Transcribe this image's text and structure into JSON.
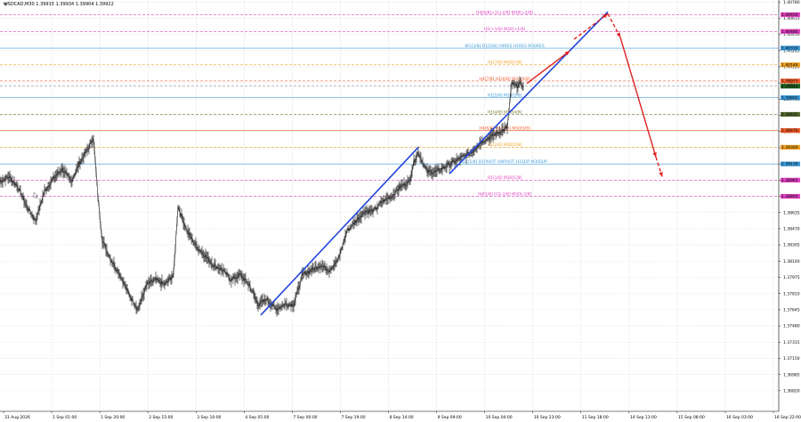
{
  "header": {
    "symbol_ohlc": "USDCAD,M30  1.39915 1.39934 1.39904 1.39922"
  },
  "chart_data": {
    "type": "line",
    "symbol": "USDCAD",
    "timeframe": "M30",
    "ylim": [
      1.3661,
      1.408
    ],
    "x_ticks": [
      "31 Aug 2026",
      "1 Sep 01:00",
      "1 Sep 20:00",
      "2 Sep 15:00",
      "3 Sep 10:00",
      "4 Sep 05:00",
      "7 Sep 00:00",
      "7 Sep 19:00",
      "8 Sep 14:00",
      "9 Sep 09:00",
      "10 Sep 04:00",
      "10 Sep 23:00",
      "11 Sep 18:00",
      "14 Sep 13:00",
      "15 Sep 08:00",
      "16 Sep 03:00",
      "16 Sep 22:00"
    ],
    "y_ticks": [
      {
        "v": 1.4078,
        "t": "1.40780"
      },
      {
        "v": 1.40615,
        "t": "1.40615"
      },
      {
        "v": 1.4045,
        "t": "1.40450"
      },
      {
        "v": 1.40285,
        "t": "1.40285"
      },
      {
        "v": 1.4012,
        "t": "1.40120"
      },
      {
        "v": 1.39955,
        "t": "1.39955"
      },
      {
        "v": 1.3979,
        "t": "1.39790"
      },
      {
        "v": 1.39625,
        "t": "1.39625"
      },
      {
        "v": 1.3946,
        "t": "1.39460"
      },
      {
        "v": 1.39295,
        "t": "1.39295"
      },
      {
        "v": 1.3913,
        "t": "1.39130"
      },
      {
        "v": 1.38965,
        "t": "1.38965"
      },
      {
        "v": 1.388,
        "t": "1.38800"
      },
      {
        "v": 1.38635,
        "t": "1.38635"
      },
      {
        "v": 1.3847,
        "t": "1.38470"
      },
      {
        "v": 1.38305,
        "t": "1.38305"
      },
      {
        "v": 1.3814,
        "t": "1.38140"
      },
      {
        "v": 1.37975,
        "t": "1.37975"
      },
      {
        "v": 1.3781,
        "t": "1.37810"
      },
      {
        "v": 1.37645,
        "t": "1.37645"
      },
      {
        "v": 1.3748,
        "t": "1.37480"
      },
      {
        "v": 1.37315,
        "t": "1.37315"
      },
      {
        "v": 1.3715,
        "t": "1.37150"
      },
      {
        "v": 1.36985,
        "t": "1.36985"
      },
      {
        "v": 1.3682,
        "t": "1.36820"
      }
    ],
    "levels": [
      {
        "value": 1.4065,
        "label": "H4[8/8]+1[+2/8] M30[+2/8]",
        "color": "#e040c0",
        "dash": true,
        "tag": "1.40650",
        "tag_bg": "#e040c0"
      },
      {
        "value": 1.4048,
        "label": "H1[+1/8] M30[+1/8]",
        "color": "#e040c0",
        "dash": true,
        "tag": "1.40480",
        "tag_bg": "#e040c0"
      },
      {
        "value": 1.4031,
        "label": "W1[3/8] D1[6/8] H4RES H1RES M30RES",
        "color": "#3a9ad9",
        "dash": false,
        "tag": "1.40310",
        "tag_bg": "#3a9ad9"
      },
      {
        "value": 1.4014,
        "label": "H1[7/8] M30[7/8]",
        "color": "#f0a020",
        "dash": true,
        "tag": "1.40140",
        "tag_bg": "#f0a020"
      },
      {
        "value": 1.39975,
        "label": "H4[7/8] H1[6/8] M30[6/8]",
        "color": "#f05a28",
        "dash": true,
        "tag": "1.39975",
        "tag_bg": "#f05a28"
      },
      {
        "value": 1.39922,
        "label": "",
        "color": "#888888",
        "dash": true,
        "tag": "1.39922",
        "tag_bg": "#1e5f1e"
      },
      {
        "value": 1.39805,
        "label": "H1[5/8] M30[5/8]",
        "color": "#3a9ad9",
        "dash": false,
        "tag": "1.39805",
        "tag_bg": "#3a9ad9"
      },
      {
        "value": 1.39635,
        "label": "H1[4/8] M30[4/8]",
        "color": "#7a7a30",
        "dash": true,
        "tag": "1.39635",
        "tag_bg": "#556b2f"
      },
      {
        "value": 1.3947,
        "label": "H4[6/8] H1[3/8] M30[3/8]",
        "color": "#f05a28",
        "dash": false,
        "tag": "1.39470",
        "tag_bg": "#f05a28"
      },
      {
        "value": 1.393,
        "label": "H1[2/8] M30[2/8]",
        "color": "#f0a020",
        "dash": true,
        "tag": "1.39300",
        "tag_bg": "#f0a020"
      },
      {
        "value": 1.3913,
        "label": "D1[5/8] D1PIVOT H4PIVOT H1SUP M30SUP",
        "color": "#3a9ad9",
        "dash": false,
        "tag": "1.39130",
        "tag_bg": "#3a9ad9"
      },
      {
        "value": 1.38965,
        "label": "H1[1/8] M30[1/8]",
        "color": "#e040c0",
        "dash": true,
        "tag": "1.38965",
        "tag_bg": "#e040c0"
      },
      {
        "value": 1.388,
        "label": "H4[5/8] H1[-2/8] M30[-2/8]",
        "color": "#e040c0",
        "dash": true,
        "tag": "1.38800",
        "tag_bg": "#e040c0"
      }
    ],
    "price_series": [
      [
        0,
        1.3895
      ],
      [
        10,
        1.39
      ],
      [
        20,
        1.389
      ],
      [
        30,
        1.387
      ],
      [
        40,
        1.3855
      ],
      [
        50,
        1.3885
      ],
      [
        60,
        1.3898
      ],
      [
        70,
        1.3908
      ],
      [
        80,
        1.3895
      ],
      [
        90,
        1.3915
      ],
      [
        100,
        1.393
      ],
      [
        105,
        1.394
      ],
      [
        110,
        1.388
      ],
      [
        115,
        1.3835
      ],
      [
        125,
        1.3815
      ],
      [
        135,
        1.38
      ],
      [
        145,
        1.378
      ],
      [
        155,
        1.3765
      ],
      [
        165,
        1.379
      ],
      [
        175,
        1.3795
      ],
      [
        185,
        1.379
      ],
      [
        195,
        1.38
      ],
      [
        200,
        1.387
      ],
      [
        210,
        1.3845
      ],
      [
        220,
        1.383
      ],
      [
        230,
        1.382
      ],
      [
        240,
        1.381
      ],
      [
        250,
        1.3805
      ],
      [
        260,
        1.3795
      ],
      [
        270,
        1.38
      ],
      [
        280,
        1.379
      ],
      [
        290,
        1.377
      ],
      [
        300,
        1.3775
      ],
      [
        310,
        1.3765
      ],
      [
        320,
        1.377
      ],
      [
        330,
        1.377
      ],
      [
        340,
        1.38
      ],
      [
        350,
        1.3805
      ],
      [
        360,
        1.381
      ],
      [
        370,
        1.3805
      ],
      [
        380,
        1.3815
      ],
      [
        390,
        1.3845
      ],
      [
        400,
        1.3855
      ],
      [
        410,
        1.3865
      ],
      [
        420,
        1.3865
      ],
      [
        430,
        1.3875
      ],
      [
        440,
        1.388
      ],
      [
        450,
        1.389
      ],
      [
        460,
        1.3895
      ],
      [
        465,
        1.3915
      ],
      [
        470,
        1.3925
      ],
      [
        480,
        1.3905
      ],
      [
        490,
        1.3905
      ],
      [
        500,
        1.391
      ],
      [
        510,
        1.3915
      ],
      [
        520,
        1.392
      ],
      [
        530,
        1.3925
      ],
      [
        540,
        1.3935
      ],
      [
        550,
        1.394
      ],
      [
        560,
        1.3945
      ],
      [
        570,
        1.395
      ],
      [
        575,
        1.3995
      ],
      [
        580,
        1.3992
      ],
      [
        585,
        1.3995
      ],
      [
        588,
        1.39922
      ]
    ],
    "trend_lines": [
      {
        "x1": 293,
        "y1": 1.3759,
        "x2": 470,
        "y2": 1.393,
        "color": "#2244dd"
      },
      {
        "x1": 505,
        "y1": 1.3903,
        "x2": 683,
        "y2": 1.4068,
        "color": "#2244dd"
      }
    ],
    "arrows": [
      {
        "pts": [
          [
            592,
            1.3995
          ],
          [
            640,
            1.4028
          ]
        ],
        "dash": false,
        "color": "#e02020"
      },
      {
        "pts": [
          [
            645,
            1.404
          ],
          [
            683,
            1.4066
          ]
        ],
        "dash": true,
        "color": "#e02020"
      },
      {
        "pts": [
          [
            683,
            1.4066
          ],
          [
            697,
            1.4042
          ]
        ],
        "dash": true,
        "color": "#e02020"
      },
      {
        "pts": [
          [
            697,
            1.4042
          ],
          [
            737,
            1.392
          ]
        ],
        "dash": false,
        "color": "#e02020"
      },
      {
        "pts": [
          [
            737,
            1.392
          ],
          [
            744,
            1.39
          ]
        ],
        "dash": true,
        "color": "#e02020"
      }
    ]
  }
}
